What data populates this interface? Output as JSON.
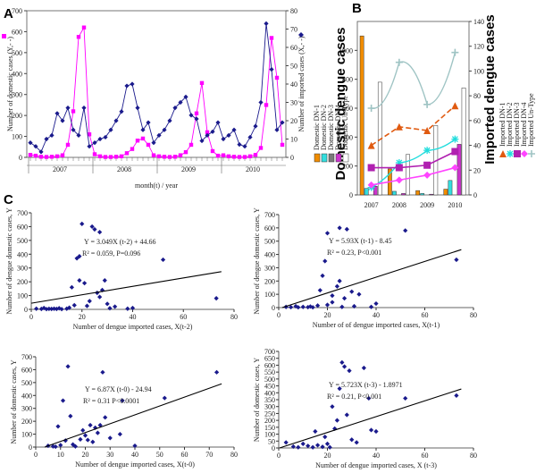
{
  "panel_labels": {
    "a": "A",
    "b": "B",
    "c": "C"
  },
  "chart_data": [
    {
      "id": "A",
      "type": "line",
      "xlabel": "month(t) / year",
      "ylabel_left": "Number of domestic cases (Y,- -)",
      "ylabel_right": "Number of imported cases (X,- -)",
      "years": [
        "2007",
        "2008",
        "2009",
        "2010"
      ],
      "ylim_left": [
        0,
        700
      ],
      "ylim_right": [
        0,
        80
      ],
      "yticks_left": [
        0,
        100,
        200,
        300,
        400,
        500,
        600,
        700
      ],
      "yticks_right": [
        0,
        10,
        20,
        30,
        40,
        50,
        60,
        70,
        80
      ],
      "series": [
        {
          "color": "#ff00ff",
          "axis": "left",
          "values": [
            12,
            8,
            3,
            2,
            3,
            5,
            10,
            60,
            220,
            575,
            620,
            110,
            15,
            5,
            2,
            2,
            3,
            5,
            20,
            40,
            80,
            90,
            60,
            10,
            5,
            3,
            2,
            3,
            10,
            25,
            60,
            210,
            355,
            120,
            30,
            8,
            10,
            5,
            3,
            2,
            2,
            5,
            12,
            45,
            250,
            570,
            380,
            60
          ]
        },
        {
          "color": "#1a1a8c",
          "axis": "right",
          "values": [
            8,
            6,
            3,
            10,
            12,
            24,
            20,
            27,
            15,
            12,
            27,
            6,
            8,
            10,
            11,
            15,
            20,
            25,
            39,
            40,
            27,
            15,
            19,
            8,
            12,
            15,
            20,
            27,
            30,
            33,
            23,
            21,
            9,
            12,
            14,
            19,
            10,
            12,
            15,
            7,
            6,
            11,
            17,
            30,
            73,
            48,
            15,
            19
          ]
        }
      ]
    },
    {
      "id": "B",
      "type": "bar+line",
      "ylabel_left": "Domestic dengue cases",
      "ylabel_right": "Imported dengue cases",
      "categories": [
        "2007",
        "2008",
        "2009",
        "2010"
      ],
      "ylim_left": [
        0,
        1200
      ],
      "ylim_right": [
        0,
        140
      ],
      "yticks_left": [
        0,
        200,
        400,
        600,
        800,
        1000
      ],
      "yticks_right": [
        0,
        20,
        40,
        60,
        80,
        100,
        120,
        140
      ],
      "bar_legend": [
        "Domestic DN-1",
        "Domestic DN-2",
        "Domestic DN-3",
        "Domestic DN-4",
        "Domestic Un-Type"
      ],
      "line_legend": [
        "Imported DN-1",
        "Imported DN-2",
        "Imported DN-3",
        "Imported DN-4",
        "Imported Un-Type"
      ],
      "bar_colors": [
        "#f08c00",
        "#33dede",
        "#7a7a7a",
        "#cc33cc",
        "#ffffff"
      ],
      "bars": [
        [
          1100,
          45,
          0,
          60,
          780
        ],
        [
          180,
          25,
          0,
          10,
          280
        ],
        [
          30,
          10,
          0,
          5,
          480
        ],
        [
          40,
          100,
          0,
          350,
          740
        ]
      ],
      "lines": [
        {
          "color": "#e05a10",
          "dash": true,
          "marker": "triangle",
          "values": [
            40,
            55,
            52,
            72
          ]
        },
        {
          "color": "#22dddd",
          "dash": false,
          "marker": "star",
          "values": [
            6,
            26,
            36,
            45
          ]
        },
        {
          "color": "#b020b0",
          "dash": false,
          "marker": "square",
          "values": [
            22,
            22,
            24,
            35
          ]
        },
        {
          "color": "#ff44ff",
          "dash": false,
          "marker": "diamond",
          "values": [
            8,
            12,
            16,
            22
          ]
        },
        {
          "color": "#9fc4c4",
          "dash": false,
          "marker": "plus",
          "values": [
            70,
            107,
            73,
            115
          ]
        }
      ]
    },
    {
      "id": "C1",
      "type": "scatter",
      "equation": "Y = 3.049X (t-2) + 44.66",
      "stats": "R² = 0.059, P=0.096",
      "xlabel": "Number of dengue imported cases, X(t-2)",
      "ylabel": "Number of dengue domestic cases, Y",
      "xlim": [
        0,
        80
      ],
      "ylim": [
        0,
        700
      ],
      "xticks": [
        0,
        20,
        40,
        60,
        80
      ],
      "yticks": [
        0,
        100,
        200,
        300,
        400,
        500,
        600,
        700
      ],
      "points": [
        [
          2,
          5
        ],
        [
          4,
          3
        ],
        [
          5,
          10
        ],
        [
          6,
          2
        ],
        [
          7,
          4
        ],
        [
          8,
          3
        ],
        [
          9,
          5
        ],
        [
          10,
          3
        ],
        [
          11,
          8
        ],
        [
          12,
          2
        ],
        [
          14,
          5
        ],
        [
          15,
          12
        ],
        [
          17,
          30
        ],
        [
          18,
          370
        ],
        [
          19,
          210
        ],
        [
          20,
          620
        ],
        [
          21,
          190
        ],
        [
          22,
          25
        ],
        [
          24,
          600
        ],
        [
          25,
          580
        ],
        [
          26,
          120
        ],
        [
          27,
          560
        ],
        [
          27,
          90
        ],
        [
          28,
          140
        ],
        [
          30,
          40
        ],
        [
          31,
          8
        ],
        [
          33,
          20
        ],
        [
          38,
          5
        ],
        [
          40,
          10
        ],
        [
          52,
          360
        ],
        [
          73,
          80
        ],
        [
          16,
          160
        ],
        [
          19,
          385
        ],
        [
          23,
          60
        ],
        [
          29,
          210
        ]
      ],
      "fit": {
        "slope": 3.049,
        "intercept": 44.66
      }
    },
    {
      "id": "C2",
      "type": "scatter",
      "equation": "Y = 5.93X (t-1) - 8.45",
      "stats": "R² = 0.23, P<0.001",
      "xlabel": "Number of of dengue imported cases, X(t-1)",
      "ylabel": "Number of dengue domestic cases, Y",
      "xlim": [
        0,
        80
      ],
      "ylim": [
        0,
        700
      ],
      "xticks": [
        0,
        20,
        40,
        60,
        80
      ],
      "yticks": [
        0,
        100,
        200,
        300,
        400,
        500,
        600,
        700
      ],
      "points": [
        [
          3,
          5
        ],
        [
          5,
          3
        ],
        [
          7,
          10
        ],
        [
          8,
          2
        ],
        [
          10,
          5
        ],
        [
          12,
          3
        ],
        [
          13,
          8
        ],
        [
          14,
          2
        ],
        [
          16,
          15
        ],
        [
          18,
          240
        ],
        [
          19,
          350
        ],
        [
          20,
          560
        ],
        [
          20,
          20
        ],
        [
          22,
          40
        ],
        [
          24,
          160
        ],
        [
          25,
          600
        ],
        [
          25,
          200
        ],
        [
          26,
          5
        ],
        [
          27,
          70
        ],
        [
          28,
          590
        ],
        [
          30,
          120
        ],
        [
          31,
          10
        ],
        [
          33,
          100
        ],
        [
          38,
          5
        ],
        [
          40,
          30
        ],
        [
          52,
          580
        ],
        [
          73,
          360
        ],
        [
          17,
          130
        ],
        [
          22,
          90
        ]
      ],
      "fit": {
        "slope": 5.93,
        "intercept": -8.45
      }
    },
    {
      "id": "C3",
      "type": "scatter",
      "equation": "Y = 6.87X (t-0) - 24.94",
      "stats": "R² = 0.31 P<0.0001",
      "xlabel": "Number of dengue imported cases, X(t-0)",
      "ylabel": "Number of domestic cases, Y",
      "xlim": [
        0,
        80
      ],
      "ylim": [
        0,
        700
      ],
      "xticks": [
        0,
        10,
        20,
        30,
        40,
        50,
        60,
        70,
        80
      ],
      "yticks": [
        0,
        100,
        200,
        300,
        400,
        500,
        600,
        700
      ],
      "points": [
        [
          5,
          10
        ],
        [
          7,
          5
        ],
        [
          8,
          3
        ],
        [
          10,
          15
        ],
        [
          11,
          360
        ],
        [
          12,
          50
        ],
        [
          13,
          625
        ],
        [
          14,
          240
        ],
        [
          15,
          20
        ],
        [
          16,
          5
        ],
        [
          18,
          60
        ],
        [
          19,
          130
        ],
        [
          20,
          90
        ],
        [
          21,
          55
        ],
        [
          22,
          170
        ],
        [
          24,
          150
        ],
        [
          25,
          110
        ],
        [
          26,
          170
        ],
        [
          27,
          580
        ],
        [
          28,
          230
        ],
        [
          30,
          70
        ],
        [
          34,
          100
        ],
        [
          35,
          360
        ],
        [
          40,
          10
        ],
        [
          52,
          380
        ],
        [
          73,
          580
        ],
        [
          9,
          160
        ],
        [
          23,
          40
        ]
      ],
      "fit": {
        "slope": 6.87,
        "intercept": -24.94
      }
    },
    {
      "id": "C4",
      "type": "scatter",
      "equation": "Y = 5.723X (t-3) - 1.8971",
      "stats": "R² = 0.21, P<0.001",
      "xlabel": "Number of dengue imported cases, X (t-3)",
      "ylabel": "Number of domestic cases, Y",
      "xlim": [
        0,
        80
      ],
      "ylim": [
        0,
        700
      ],
      "xticks": [
        0,
        20,
        40,
        60,
        80
      ],
      "yticks": [
        0,
        50,
        100,
        150,
        200,
        250,
        300,
        350,
        400,
        450,
        500,
        550,
        600,
        650,
        700
      ],
      "points": [
        [
          3,
          40
        ],
        [
          6,
          10
        ],
        [
          8,
          5
        ],
        [
          10,
          30
        ],
        [
          12,
          15
        ],
        [
          14,
          5
        ],
        [
          16,
          20
        ],
        [
          18,
          8
        ],
        [
          20,
          30
        ],
        [
          21,
          5
        ],
        [
          22,
          300
        ],
        [
          24,
          200
        ],
        [
          25,
          430
        ],
        [
          26,
          620
        ],
        [
          27,
          590
        ],
        [
          28,
          240
        ],
        [
          29,
          560
        ],
        [
          30,
          60
        ],
        [
          32,
          40
        ],
        [
          35,
          580
        ],
        [
          37,
          360
        ],
        [
          38,
          130
        ],
        [
          40,
          120
        ],
        [
          52,
          360
        ],
        [
          73,
          380
        ],
        [
          15,
          120
        ],
        [
          19,
          80
        ],
        [
          23,
          140
        ]
      ],
      "fit": {
        "slope": 5.723,
        "intercept": -1.8971
      }
    }
  ]
}
